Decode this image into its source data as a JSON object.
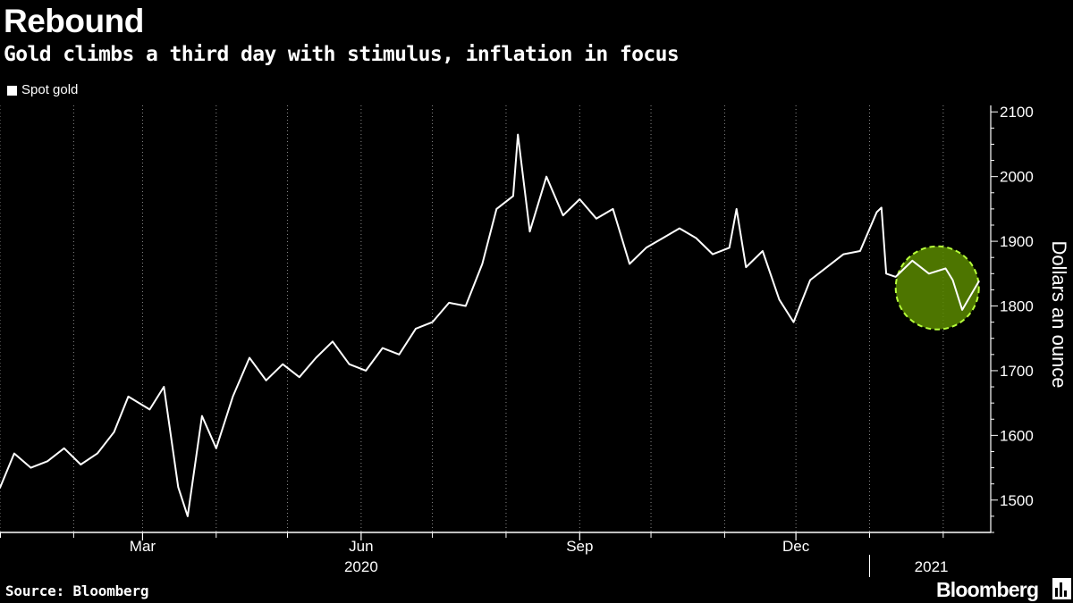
{
  "header": {
    "title": "Rebound",
    "subtitle": "Gold climbs a third day with stimulus, inflation in focus"
  },
  "footer": {
    "source": "Source: Bloomberg",
    "brand": "Bloomberg"
  },
  "colors": {
    "background": "#000000",
    "line": "#ffffff",
    "highlight_fill": "#5a8a00",
    "highlight_stroke": "#b6ff3a",
    "grid": "#8a8a8a"
  },
  "icons": {
    "brand_mark": "bar-chart-icon"
  },
  "chart_data": {
    "type": "line",
    "xlabel": "",
    "ylabel": "Dollars an ounce",
    "ylim": [
      1450,
      2110
    ],
    "yticks": [
      1500,
      1600,
      1700,
      1800,
      1900,
      2000,
      2100
    ],
    "xlim": [
      "2020-01-01",
      "2021-02-21"
    ],
    "gridlines": {
      "vertical": true,
      "style": "dotted"
    },
    "y_axis_position": "right",
    "legend_position": "top-left",
    "x_major_ticks": [
      {
        "date": "2020-03-01",
        "label": "Mar"
      },
      {
        "date": "2020-06-01",
        "label": "Jun"
      },
      {
        "date": "2020-09-01",
        "label": "Sep"
      },
      {
        "date": "2020-12-01",
        "label": "Dec"
      }
    ],
    "x_minor_ticks": [
      "2020-02-01",
      "2020-04-01",
      "2020-05-01",
      "2020-07-01",
      "2020-08-01",
      "2020-10-01",
      "2020-11-01",
      "2021-01-01",
      "2021-02-01"
    ],
    "year_labels": [
      {
        "label": "2020",
        "date": "2020-06-01"
      },
      {
        "label": "2021",
        "date": "2021-01-27"
      }
    ],
    "year_divider": "2021-01-01",
    "highlight": {
      "from": "2021-01-12",
      "to": "2021-02-16",
      "y_center": 1828
    },
    "series": [
      {
        "name": "Spot gold",
        "x": [
          "2020-01-01",
          "2020-01-07",
          "2020-01-14",
          "2020-01-21",
          "2020-01-28",
          "2020-02-04",
          "2020-02-11",
          "2020-02-18",
          "2020-02-24",
          "2020-03-04",
          "2020-03-10",
          "2020-03-16",
          "2020-03-20",
          "2020-03-26",
          "2020-04-01",
          "2020-04-08",
          "2020-04-15",
          "2020-04-22",
          "2020-04-29",
          "2020-05-06",
          "2020-05-13",
          "2020-05-20",
          "2020-05-27",
          "2020-06-03",
          "2020-06-10",
          "2020-06-17",
          "2020-06-24",
          "2020-07-01",
          "2020-07-08",
          "2020-07-15",
          "2020-07-22",
          "2020-07-28",
          "2020-08-04",
          "2020-08-06",
          "2020-08-11",
          "2020-08-18",
          "2020-08-25",
          "2020-09-01",
          "2020-09-08",
          "2020-09-15",
          "2020-09-22",
          "2020-09-29",
          "2020-10-06",
          "2020-10-13",
          "2020-10-20",
          "2020-10-27",
          "2020-11-03",
          "2020-11-06",
          "2020-11-10",
          "2020-11-17",
          "2020-11-24",
          "2020-11-30",
          "2020-12-07",
          "2020-12-14",
          "2020-12-21",
          "2020-12-28",
          "2021-01-04",
          "2021-01-06",
          "2021-01-08",
          "2021-01-12",
          "2021-01-19",
          "2021-01-26",
          "2021-02-02",
          "2021-02-05",
          "2021-02-09",
          "2021-02-16"
        ],
        "values": [
          1519,
          1572,
          1550,
          1560,
          1580,
          1555,
          1572,
          1605,
          1660,
          1640,
          1675,
          1520,
          1475,
          1630,
          1580,
          1660,
          1720,
          1685,
          1710,
          1690,
          1720,
          1745,
          1710,
          1700,
          1735,
          1725,
          1765,
          1775,
          1805,
          1800,
          1865,
          1950,
          1970,
          2065,
          1915,
          2000,
          1940,
          1965,
          1935,
          1950,
          1865,
          1890,
          1905,
          1920,
          1905,
          1880,
          1890,
          1950,
          1860,
          1885,
          1810,
          1775,
          1840,
          1860,
          1880,
          1885,
          1945,
          1952,
          1850,
          1845,
          1870,
          1850,
          1858,
          1840,
          1794,
          1838
        ]
      }
    ]
  }
}
